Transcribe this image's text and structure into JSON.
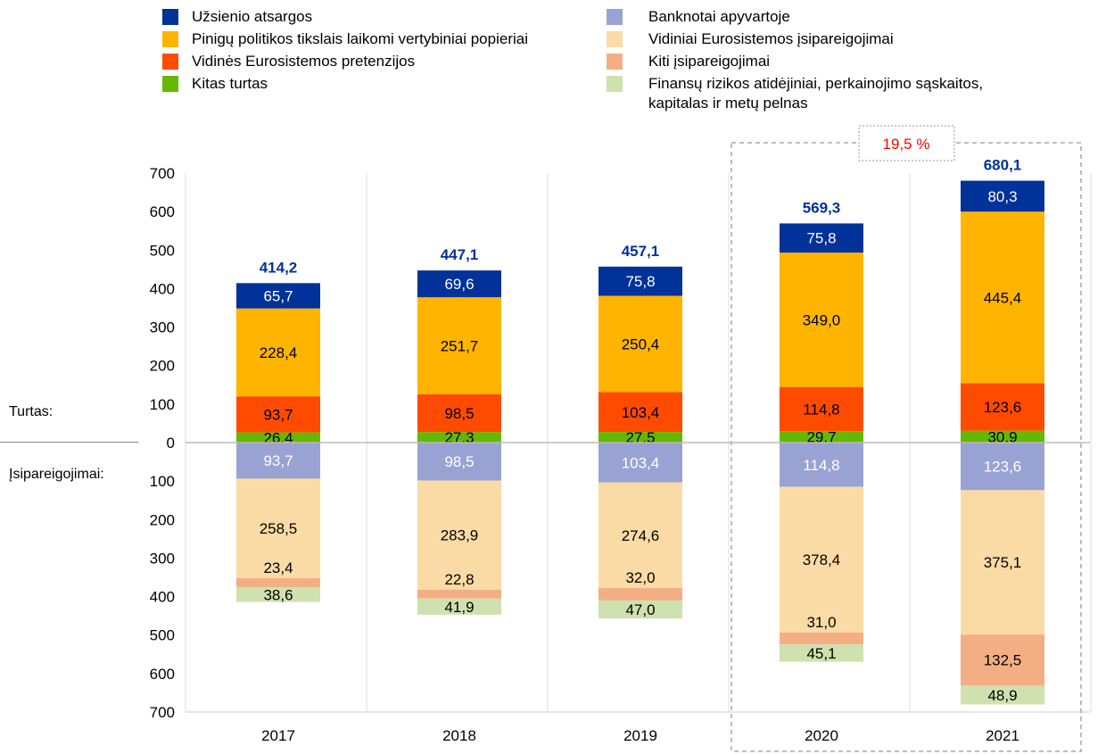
{
  "legend": [
    {
      "label": "Užsienio atsargos",
      "color": "#003299"
    },
    {
      "label": "Pinigų politikos tikslais laikomi vertybiniai popieriai",
      "color": "#FFB400"
    },
    {
      "label": "Vidinės Eurosistemos pretenzijos",
      "color": "#FF4B00"
    },
    {
      "label": "Kitas turtas",
      "color": "#65B800"
    },
    {
      "label": "Banknotai apyvartoje",
      "color": "#99A3D3"
    },
    {
      "label": "Vidiniai Eurosistemos įsipareigojimai",
      "color": "#FBDBA5"
    },
    {
      "label": "Kiti įsipareigojimai",
      "color": "#F3AF83"
    },
    {
      "label": "Finansų rizikos atidėjiniai, perkainojimo sąskaitos, kapitalas ir metų pelnas",
      "color": "#CFE1AF"
    }
  ],
  "side_labels": {
    "assets": "Turtas:",
    "liabilities": "Įsipareigojimai:"
  },
  "chart_data": {
    "type": "bar",
    "stacked": true,
    "categories": [
      "2017",
      "2018",
      "2019",
      "2020",
      "2021"
    ],
    "y_ticks_assets": [
      "0",
      "100",
      "200",
      "300",
      "400",
      "500",
      "600",
      "700"
    ],
    "y_ticks_liabilities": [
      "100",
      "200",
      "300",
      "400",
      "500",
      "600",
      "700"
    ],
    "ylim": [
      -700,
      700
    ],
    "assets": [
      {
        "name": "Kitas turtas",
        "color": "#65B800",
        "values": [
          26.4,
          27.3,
          27.5,
          29.7,
          30.9
        ],
        "labels": [
          "26,4",
          "27,3",
          "27,5",
          "29,7",
          "30,9"
        ],
        "text": "#000"
      },
      {
        "name": "Vidinės Eurosistemos pretenzijos",
        "color": "#FF4B00",
        "values": [
          93.7,
          98.5,
          103.4,
          114.8,
          123.6
        ],
        "labels": [
          "93,7",
          "98,5",
          "103,4",
          "114,8",
          "123,6"
        ],
        "text": "#000"
      },
      {
        "name": "Pinigų politikos tikslais laikomi vertybiniai popieriai",
        "color": "#FFB400",
        "values": [
          228.4,
          251.7,
          250.4,
          349.0,
          445.4
        ],
        "labels": [
          "228,4",
          "251,7",
          "250,4",
          "349,0",
          "445,4"
        ],
        "text": "#000"
      },
      {
        "name": "Užsienio atsargos",
        "color": "#003299",
        "values": [
          65.7,
          69.6,
          75.8,
          75.8,
          80.3
        ],
        "labels": [
          "65,7",
          "69,6",
          "75,8",
          "75,8",
          "80,3"
        ],
        "text": "#fff"
      }
    ],
    "liabilities": [
      {
        "name": "Banknotai apyvartoje",
        "color": "#99A3D3",
        "values": [
          93.7,
          98.5,
          103.4,
          114.8,
          123.6
        ],
        "labels": [
          "93,7",
          "98,5",
          "103,4",
          "114,8",
          "123,6"
        ],
        "text": "#fff"
      },
      {
        "name": "Vidiniai Eurosistemos įsipareigojimai",
        "color": "#FBDBA5",
        "values": [
          258.5,
          283.9,
          274.6,
          378.4,
          375.1
        ],
        "labels": [
          "258,5",
          "283,9",
          "274,6",
          "378,4",
          "375,1"
        ],
        "text": "#000"
      },
      {
        "name": "Kiti įsipareigojimai",
        "color": "#F3AF83",
        "values": [
          23.4,
          22.8,
          32.0,
          31.0,
          132.5
        ],
        "labels": [
          "23,4",
          "22,8",
          "32,0",
          "31,0",
          "132,5"
        ],
        "text": "#000"
      },
      {
        "name": "Finansų rizikos atidėjiniai, perkainojimo sąskaitos, kapitalas ir metų pelnas",
        "color": "#CFE1AF",
        "values": [
          38.6,
          41.9,
          47.0,
          45.1,
          48.9
        ],
        "labels": [
          "38,6",
          "41,9",
          "47,0",
          "45,1",
          "48,9"
        ],
        "text": "#000"
      }
    ],
    "totals": [
      "414,2",
      "447,1",
      "457,1",
      "569,3",
      "680,1"
    ],
    "totals_color": "#003299",
    "annotation": {
      "text": "19,5 %",
      "color": "#FF0000",
      "highlight": [
        "2020",
        "2021"
      ]
    }
  }
}
